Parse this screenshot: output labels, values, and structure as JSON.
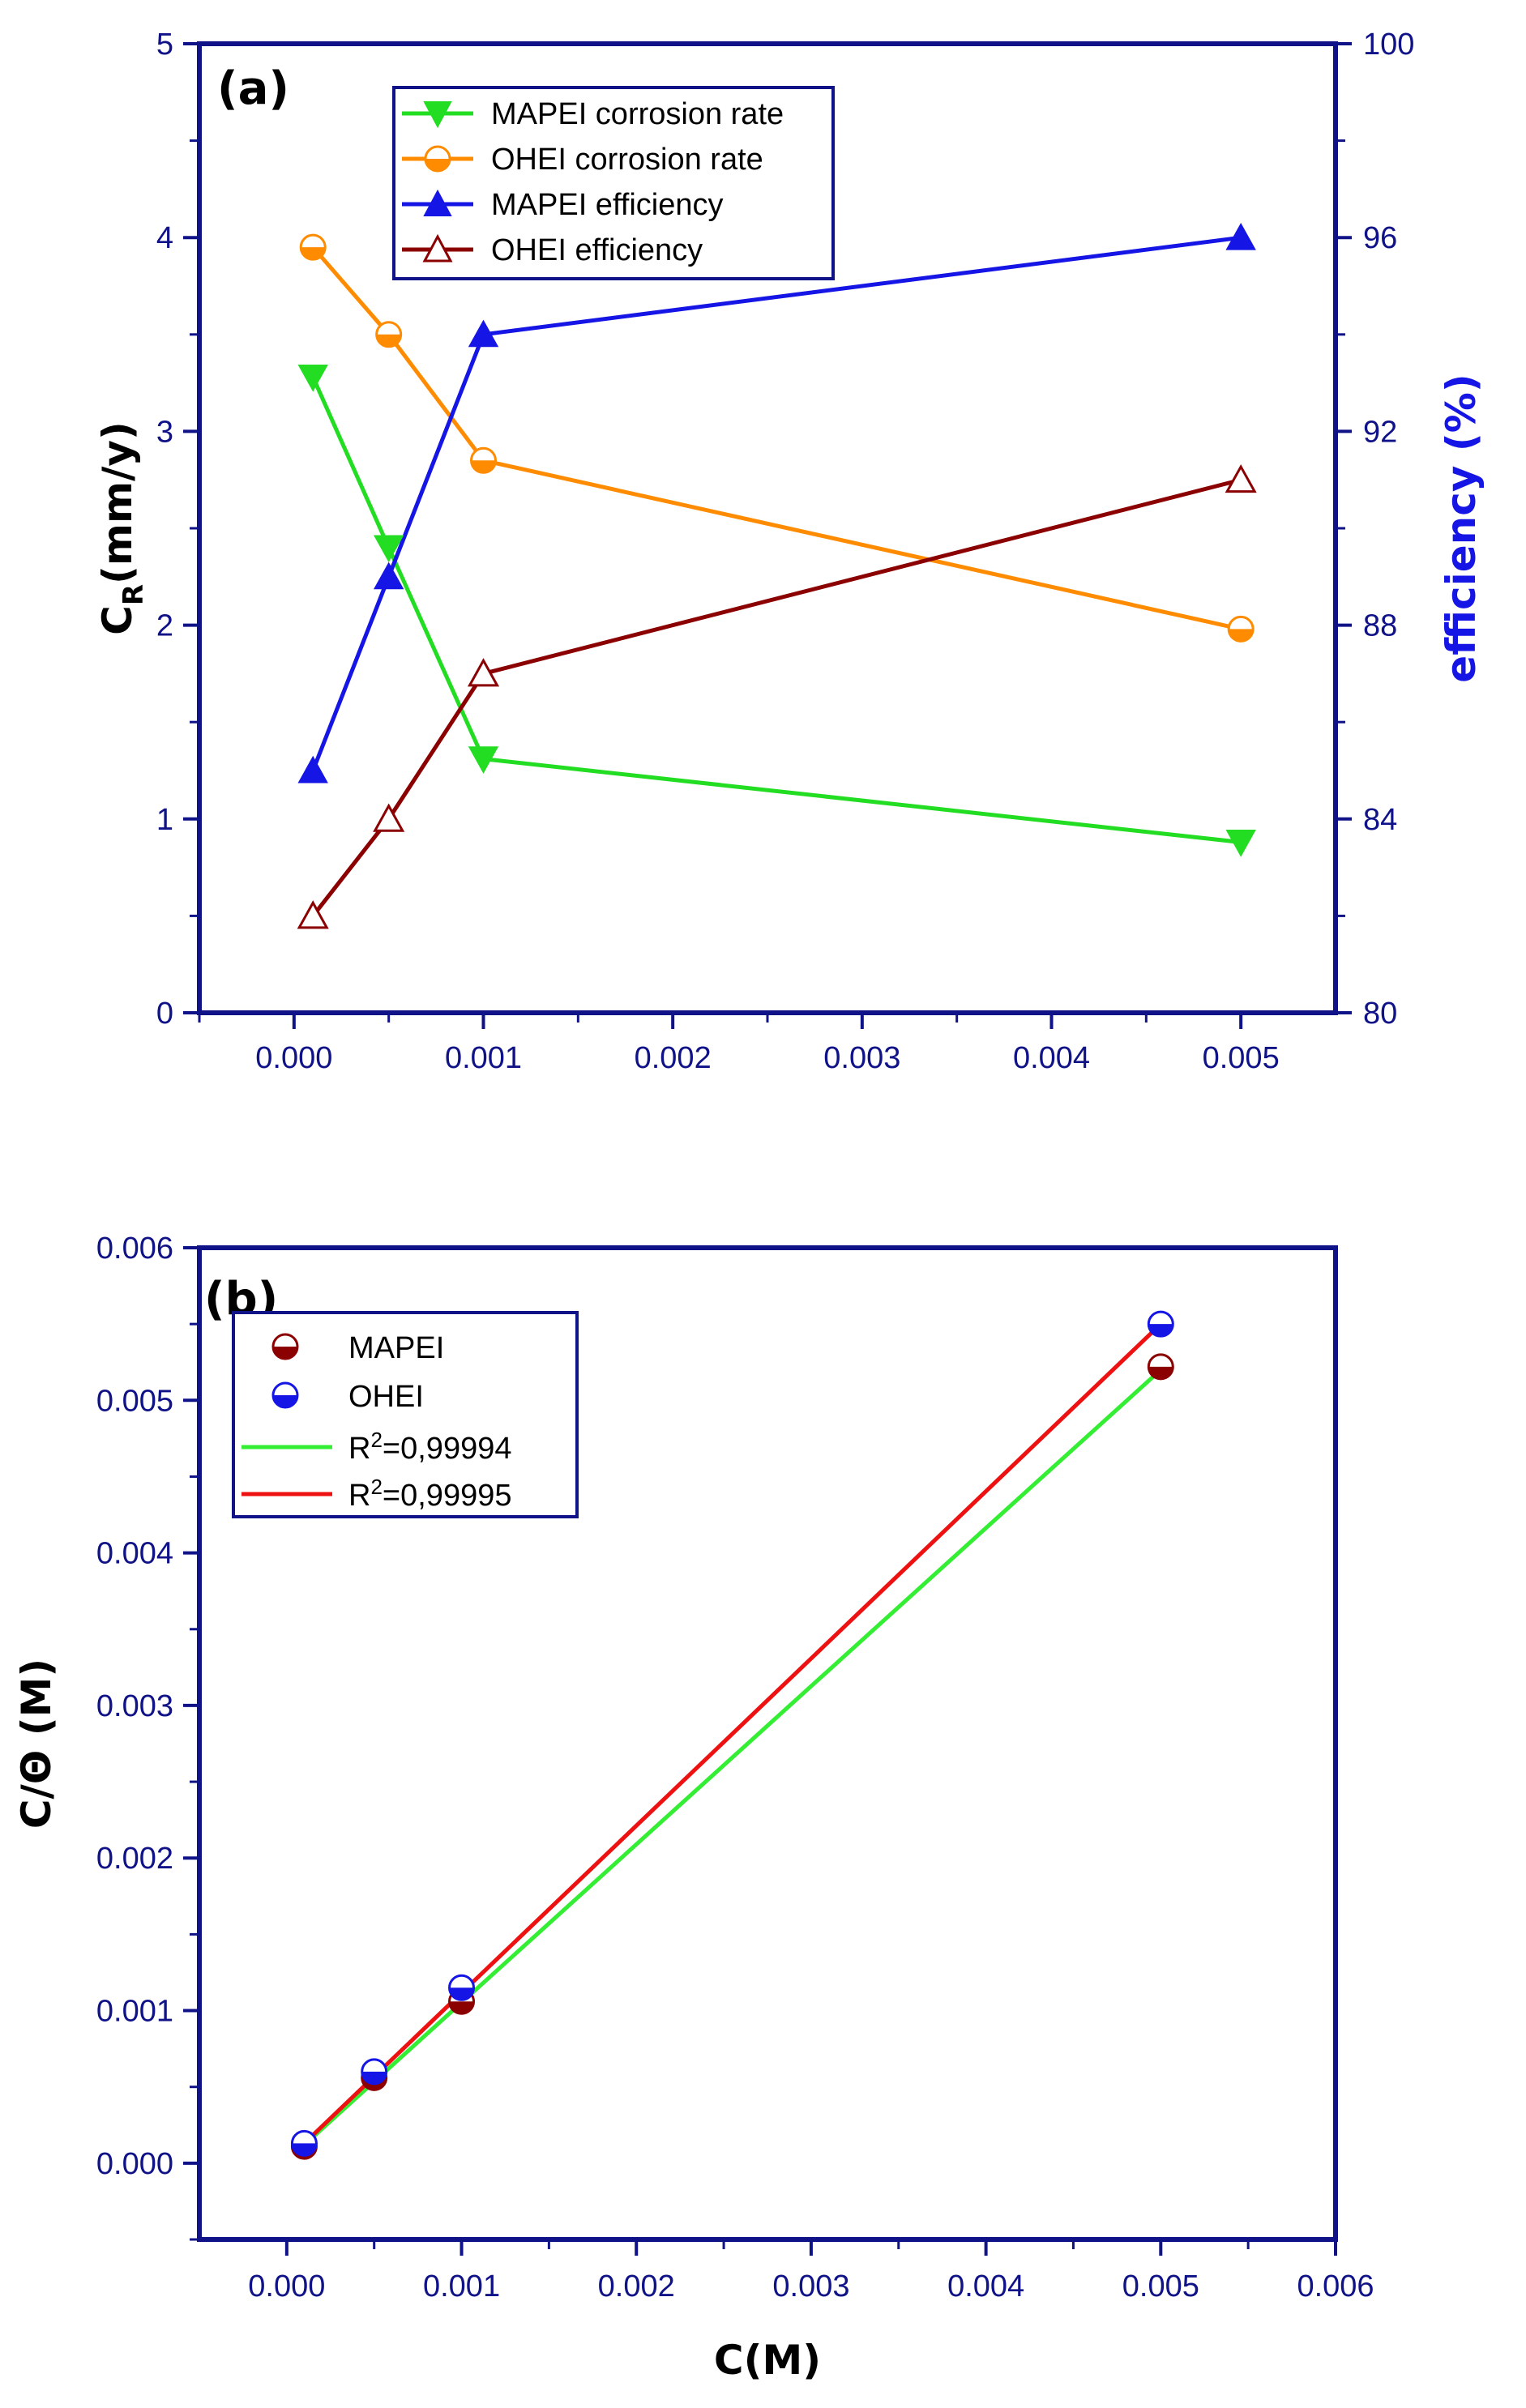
{
  "colors": {
    "axis": "#101288",
    "mapei_cr": "#22dd22",
    "ohei_cr": "#ff8c00",
    "mapei_eff": "#1515e6",
    "ohei_eff": "#8b0000",
    "fit_mapei": "#33ee33",
    "fit_ohei": "#ee1111",
    "text": "#000000"
  },
  "chart_data": [
    {
      "panel": "(a)",
      "type": "line",
      "x": [
        0.0001,
        0.0005,
        0.001,
        0.005
      ],
      "xlim": [
        -0.0005,
        0.0055
      ],
      "xticks": [
        0.0,
        0.001,
        0.002,
        0.003,
        0.004,
        0.005
      ],
      "xtick_labels": [
        "0.000",
        "0.001",
        "0.002",
        "0.003",
        "0.004",
        "0.005"
      ],
      "ylabel": "C",
      "ylabel_sub": "R",
      "ylabel_rest": "(mm/y)",
      "ylim": [
        0,
        5
      ],
      "yticks": [
        0,
        1,
        2,
        3,
        4,
        5
      ],
      "ytick_labels": [
        "0",
        "1",
        "2",
        "3",
        "4",
        "5"
      ],
      "y2label": "efficiency (%)",
      "y2lim": [
        80,
        100
      ],
      "y2ticks": [
        80,
        84,
        88,
        92,
        96,
        100
      ],
      "y2tick_labels": [
        "80",
        "84",
        "88",
        "92",
        "96",
        "100"
      ],
      "series": [
        {
          "name": "MAPEI corrosion rate",
          "axis": "left",
          "marker": "triangle-down",
          "color": "#22dd22",
          "values": [
            3.28,
            2.4,
            1.31,
            0.88
          ]
        },
        {
          "name": "OHEI corrosion rate",
          "axis": "left",
          "marker": "half-circle",
          "color": "#ff8c00",
          "values": [
            3.95,
            3.5,
            2.85,
            1.98
          ]
        },
        {
          "name": "MAPEI efficiency",
          "axis": "right",
          "marker": "triangle-up",
          "color": "#1515e6",
          "values": [
            85,
            89,
            94,
            96
          ]
        },
        {
          "name": "OHEI efficiency",
          "axis": "right",
          "marker": "triangle-open",
          "color": "#8b0000",
          "values": [
            82,
            84,
            87,
            91
          ]
        }
      ]
    },
    {
      "panel": "(b)",
      "type": "scatter",
      "xlabel": "C(M)",
      "ylabel": "C/Θ (M)",
      "xlim": [
        -0.0005,
        0.006
      ],
      "xticks": [
        0.0,
        0.001,
        0.002,
        0.003,
        0.004,
        0.005,
        0.006
      ],
      "xtick_labels": [
        "0.000",
        "0.001",
        "0.002",
        "0.003",
        "0.004",
        "0.005",
        "0.006"
      ],
      "ylim": [
        -0.0005,
        0.006
      ],
      "yticks": [
        0.0,
        0.001,
        0.002,
        0.003,
        0.004,
        0.005,
        0.006
      ],
      "ytick_labels": [
        "0.000",
        "0.001",
        "0.002",
        "0.003",
        "0.004",
        "0.005",
        "0.006"
      ],
      "series": [
        {
          "name": "MAPEI",
          "kind": "points",
          "marker": "half-circle",
          "color": "#8b0000",
          "x": [
            0.0001,
            0.0005,
            0.001,
            0.005
          ],
          "y": [
            0.00011,
            0.00056,
            0.00106,
            0.00522
          ]
        },
        {
          "name": "OHEI",
          "kind": "points",
          "marker": "half-circle",
          "color": "#1515e6",
          "x": [
            0.0001,
            0.0005,
            0.001,
            0.005
          ],
          "y": [
            0.00013,
            0.0006,
            0.00115,
            0.0055
          ]
        },
        {
          "name": "R²=0,99994",
          "label_main": "R",
          "label_sup": "2",
          "label_rest": "=0,99994",
          "kind": "line",
          "color": "#33ee33",
          "x": [
            0.0001,
            0.005
          ],
          "y": [
            0.00012,
            0.0052
          ]
        },
        {
          "name": "R²=0,99995",
          "label_main": "R",
          "label_sup": "2",
          "label_rest": "=0,99995",
          "kind": "line",
          "color": "#ee1111",
          "x": [
            0.0001,
            0.005
          ],
          "y": [
            0.00013,
            0.0055
          ]
        }
      ]
    }
  ]
}
